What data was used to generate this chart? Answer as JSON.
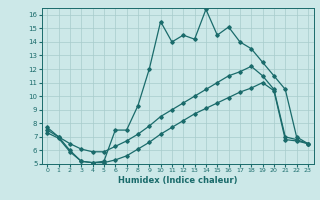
{
  "xlabel": "Humidex (Indice chaleur)",
  "background_color": "#cce8e8",
  "line_color": "#1a6b6b",
  "grid_color": "#a8cccc",
  "xlim": [
    -0.5,
    23.5
  ],
  "ylim": [
    5,
    16.5
  ],
  "xticks": [
    0,
    1,
    2,
    3,
    4,
    5,
    6,
    7,
    8,
    9,
    10,
    11,
    12,
    13,
    14,
    15,
    16,
    17,
    18,
    19,
    20,
    21,
    22,
    23
  ],
  "yticks": [
    5,
    6,
    7,
    8,
    9,
    10,
    11,
    12,
    13,
    14,
    15,
    16
  ],
  "curve1_x": [
    0,
    1,
    2,
    3,
    4,
    5,
    6,
    7,
    8,
    9,
    10,
    11,
    12,
    13,
    14,
    15,
    16,
    17,
    18,
    19,
    20,
    21,
    22,
    23
  ],
  "curve1_y": [
    7.7,
    7.0,
    6.0,
    5.2,
    5.1,
    5.2,
    7.5,
    7.5,
    9.3,
    12.0,
    15.5,
    14.0,
    14.5,
    14.2,
    16.4,
    14.5,
    15.1,
    14.0,
    13.5,
    12.5,
    11.5,
    10.5,
    7.0,
    6.5
  ],
  "curve2_x": [
    0,
    1,
    2,
    3,
    4,
    5,
    6,
    7,
    8,
    9,
    10,
    11,
    12,
    13,
    14,
    15,
    16,
    17,
    18,
    19,
    20,
    21,
    22,
    23
  ],
  "curve2_y": [
    7.5,
    7.0,
    6.5,
    6.1,
    5.9,
    5.9,
    6.3,
    6.7,
    7.2,
    7.8,
    8.5,
    9.0,
    9.5,
    10.0,
    10.5,
    11.0,
    11.5,
    11.8,
    12.2,
    11.5,
    10.5,
    7.0,
    6.8,
    6.5
  ],
  "curve3_x": [
    0,
    1,
    2,
    3,
    4,
    5,
    6,
    7,
    8,
    9,
    10,
    11,
    12,
    13,
    14,
    15,
    16,
    17,
    18,
    19,
    20,
    21,
    22,
    23
  ],
  "curve3_y": [
    7.3,
    6.9,
    5.9,
    5.2,
    5.1,
    5.1,
    5.3,
    5.6,
    6.1,
    6.6,
    7.2,
    7.7,
    8.2,
    8.7,
    9.1,
    9.5,
    9.9,
    10.3,
    10.6,
    11.0,
    10.4,
    6.8,
    6.7,
    6.5
  ]
}
